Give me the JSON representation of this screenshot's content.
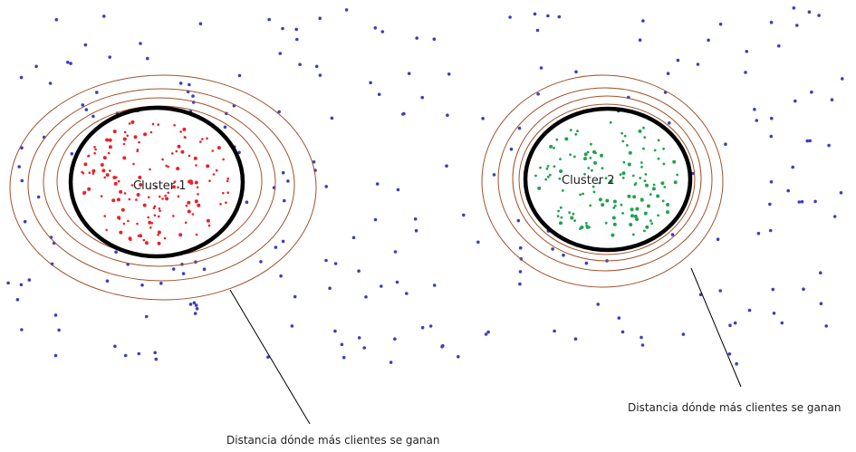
{
  "colors": {
    "background": "#ffffff",
    "scatter_point": "#3b3fbf",
    "cluster_1_point": "#e8232a",
    "cluster_2_point": "#22a150",
    "cluster_boundary": "#000000",
    "distance_ring": "#a0522d",
    "leader_line": "#000000"
  },
  "clusters": [
    {
      "label": "Cluster 1",
      "annotation": "Distancia dónde más clientes se ganan"
    },
    {
      "label": "Cluster 2",
      "annotation": "Distancia dónde más clientes se ganan"
    }
  ]
}
